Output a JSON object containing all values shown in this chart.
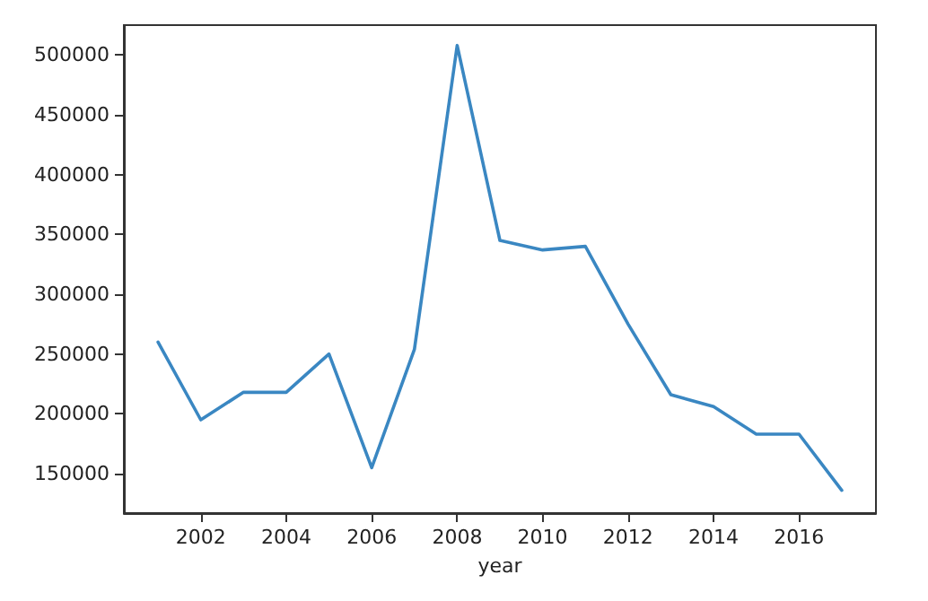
{
  "chart_data": {
    "type": "line",
    "xlabel": "year",
    "x": [
      2001,
      2002,
      2003,
      2004,
      2005,
      2006,
      2007,
      2008,
      2009,
      2010,
      2011,
      2012,
      2013,
      2014,
      2015,
      2016,
      2017
    ],
    "series": [
      {
        "color": "#3a87c2",
        "values": [
          260000,
          195000,
          218000,
          218000,
          250000,
          155000,
          254000,
          508000,
          345000,
          337000,
          340000,
          275000,
          216000,
          206000,
          183000,
          183000,
          136000
        ]
      }
    ],
    "xlim": [
      2000.2,
      2017.8
    ],
    "xticks": [
      2002,
      2004,
      2006,
      2008,
      2010,
      2012,
      2014,
      2016
    ],
    "ylim": [
      117000,
      525000
    ],
    "yticks": [
      150000,
      200000,
      250000,
      300000,
      350000,
      400000,
      450000,
      500000
    ],
    "grid": false,
    "marker": "none",
    "line_style": "solid"
  }
}
